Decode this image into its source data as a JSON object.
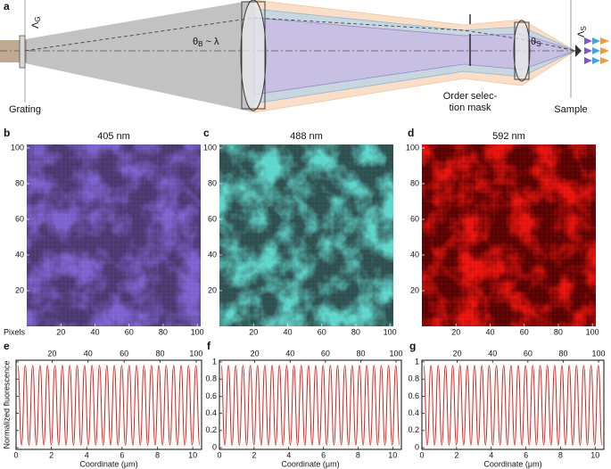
{
  "diagram": {
    "panel": "a",
    "grating": "Grating",
    "mask": [
      "Order selec-",
      "tion mask"
    ],
    "sample": "Sample",
    "theta_b": {
      "symbol": "θ",
      "sub": "B",
      "rest": " ~ λ"
    },
    "theta_s": {
      "symbol": "θ",
      "sub": "S"
    },
    "lambda_g": {
      "symbol": "Λ",
      "sub": "G"
    },
    "lambda_s": {
      "symbol": "Λ",
      "sub": "S"
    }
  },
  "chart_data": [
    {
      "type": "image",
      "panel": "b",
      "title": "405 nm",
      "xlabel": "Pixels",
      "colors": [
        "#120a2a",
        "#7d62cf"
      ],
      "xlim": [
        0,
        102
      ],
      "xticks": [
        20,
        40,
        60,
        80,
        100
      ],
      "ylim": [
        0,
        102
      ],
      "yticks": [
        20,
        40,
        60,
        80,
        100
      ]
    },
    {
      "type": "image",
      "panel": "c",
      "title": "488 nm",
      "colors": [
        "#071414",
        "#5fd6cc"
      ],
      "xlim": [
        0,
        102
      ],
      "xticks": [
        20,
        40,
        60,
        80,
        100
      ],
      "ylim": [
        0,
        102
      ],
      "yticks": [
        20,
        40,
        60,
        80,
        100
      ]
    },
    {
      "type": "image",
      "panel": "d",
      "title": "592 nm",
      "colors": [
        "#1a0000",
        "#e8120c"
      ],
      "xlim": [
        0,
        102
      ],
      "xticks": [
        20,
        40,
        60,
        80,
        100
      ],
      "ylim": [
        0,
        102
      ],
      "yticks": [
        20,
        40,
        60,
        80,
        100
      ]
    },
    {
      "type": "line",
      "panel": "e",
      "xlabel": "Coordinate (μm)",
      "ylabel": "Normalized fluorescence",
      "show_ytick_labels": false,
      "xlim": [
        0,
        10.5
      ],
      "xticks": [
        0,
        2,
        4,
        6,
        8,
        10
      ],
      "x2lim": [
        0,
        103
      ],
      "x2ticks": [
        20,
        40,
        60,
        80,
        100
      ],
      "ylim": [
        -0.02,
        1.02
      ],
      "yticks": [
        0,
        0.2,
        0.4,
        0.6,
        0.8,
        1
      ],
      "x": [
        0.1,
        0.31,
        0.52,
        0.73,
        0.94,
        1.15,
        1.36,
        1.57,
        1.78,
        1.99,
        2.2,
        2.41,
        2.62,
        2.83,
        3.04,
        3.25,
        3.46,
        3.67,
        3.88,
        4.09,
        4.3,
        4.51,
        4.72,
        4.93,
        5.14,
        5.35,
        5.56,
        5.77,
        5.98,
        6.19,
        6.4,
        6.61,
        6.82,
        7.03,
        7.24,
        7.45,
        7.66,
        7.87,
        8.08,
        8.29,
        8.5,
        8.71,
        8.92,
        9.13,
        9.34,
        9.55,
        9.76,
        9.97,
        10.18,
        10.39
      ],
      "series": [
        {
          "color": "#e0201a",
          "values": [
            0.96,
            0.03,
            0.96,
            0.03,
            0.96,
            0.03,
            0.96,
            0.03,
            0.96,
            0.03,
            0.96,
            0.03,
            0.96,
            0.03,
            0.96,
            0.03,
            0.96,
            0.03,
            0.96,
            0.03,
            0.96,
            0.03,
            0.96,
            0.03,
            0.96,
            0.03,
            0.96,
            0.03,
            0.96,
            0.03,
            0.96,
            0.03,
            0.96,
            0.03,
            0.96,
            0.03,
            0.96,
            0.03,
            0.96,
            0.03,
            0.96,
            0.03,
            0.96,
            0.03,
            0.96,
            0.03,
            0.96,
            0.03,
            0.96,
            0.03
          ]
        }
      ]
    },
    {
      "type": "line",
      "panel": "f",
      "xlabel": "Coordinate (μm)",
      "xlim": [
        0,
        10.5
      ],
      "xticks": [
        0,
        2,
        4,
        6,
        8,
        10
      ],
      "x2lim": [
        0,
        103
      ],
      "x2ticks": [
        20,
        40,
        60,
        80,
        100
      ],
      "ylim": [
        -0.02,
        1.02
      ],
      "yticks": [
        0,
        0.2,
        0.4,
        0.6,
        0.8,
        1
      ],
      "x": [
        0.1,
        0.31,
        0.52,
        0.73,
        0.94,
        1.15,
        1.36,
        1.57,
        1.78,
        1.99,
        2.2,
        2.41,
        2.62,
        2.83,
        3.04,
        3.25,
        3.46,
        3.67,
        3.88,
        4.09,
        4.3,
        4.51,
        4.72,
        4.93,
        5.14,
        5.35,
        5.56,
        5.77,
        5.98,
        6.19,
        6.4,
        6.61,
        6.82,
        7.03,
        7.24,
        7.45,
        7.66,
        7.87,
        8.08,
        8.29,
        8.5,
        8.71,
        8.92,
        9.13,
        9.34,
        9.55,
        9.76,
        9.97,
        10.18,
        10.39
      ],
      "series": [
        {
          "color": "#e0201a",
          "values": [
            0.96,
            0.03,
            0.96,
            0.03,
            0.96,
            0.03,
            0.96,
            0.03,
            0.96,
            0.03,
            0.96,
            0.03,
            0.96,
            0.03,
            0.96,
            0.03,
            0.96,
            0.03,
            0.96,
            0.03,
            0.96,
            0.03,
            0.96,
            0.03,
            0.96,
            0.03,
            0.96,
            0.03,
            0.96,
            0.03,
            0.96,
            0.03,
            0.96,
            0.03,
            0.96,
            0.03,
            0.96,
            0.03,
            0.96,
            0.03,
            0.96,
            0.03,
            0.96,
            0.03,
            0.96,
            0.03,
            0.96,
            0.03,
            0.96,
            0.03
          ]
        }
      ]
    },
    {
      "type": "line",
      "panel": "g",
      "xlabel": "Coordinate (μm)",
      "xlim": [
        0,
        10.5
      ],
      "xticks": [
        0,
        2,
        4,
        6,
        8,
        10
      ],
      "x2lim": [
        0,
        103
      ],
      "x2ticks": [
        20,
        40,
        60,
        80,
        100
      ],
      "ylim": [
        -0.02,
        1.02
      ],
      "yticks": [
        0,
        0.2,
        0.4,
        0.6,
        0.8,
        1
      ],
      "x": [
        0.1,
        0.31,
        0.52,
        0.73,
        0.94,
        1.15,
        1.36,
        1.57,
        1.78,
        1.99,
        2.2,
        2.41,
        2.62,
        2.83,
        3.04,
        3.25,
        3.46,
        3.67,
        3.88,
        4.09,
        4.3,
        4.51,
        4.72,
        4.93,
        5.14,
        5.35,
        5.56,
        5.77,
        5.98,
        6.19,
        6.4,
        6.61,
        6.82,
        7.03,
        7.24,
        7.45,
        7.66,
        7.87,
        8.08,
        8.29,
        8.5,
        8.71,
        8.92,
        9.13,
        9.34,
        9.55,
        9.76,
        9.97,
        10.18,
        10.39
      ],
      "series": [
        {
          "color": "#e0201a",
          "values": [
            0.96,
            0.03,
            0.96,
            0.03,
            0.96,
            0.03,
            0.96,
            0.03,
            0.96,
            0.03,
            0.96,
            0.03,
            0.96,
            0.03,
            0.96,
            0.03,
            0.96,
            0.03,
            0.96,
            0.03,
            0.96,
            0.03,
            0.96,
            0.03,
            0.96,
            0.03,
            0.96,
            0.03,
            0.96,
            0.03,
            0.96,
            0.03,
            0.96,
            0.03,
            0.96,
            0.03,
            0.96,
            0.03,
            0.96,
            0.03,
            0.96,
            0.03,
            0.96,
            0.03,
            0.96,
            0.03,
            0.96,
            0.03,
            0.96,
            0.03
          ]
        }
      ]
    }
  ]
}
